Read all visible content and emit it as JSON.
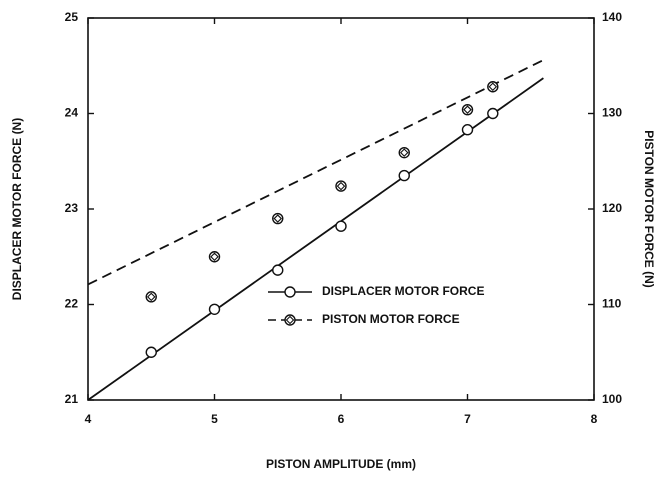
{
  "chart_data": {
    "type": "line",
    "xlabel": "PISTON AMPLITUDE (mm)",
    "ylabel": "DISPLACER MOTOR FORCE (N)",
    "y2label": "PISTON MOTOR FORCE (N)",
    "xlim": [
      4,
      8
    ],
    "xticks": [
      4,
      5,
      6,
      7,
      8
    ],
    "ylim": [
      21,
      25
    ],
    "yticks": [
      21,
      22,
      23,
      24,
      25
    ],
    "y2lim": [
      100,
      140
    ],
    "y2ticks": [
      100,
      110,
      120,
      130,
      140
    ],
    "legend": "lower right",
    "series": [
      {
        "name": "DISPLACER MOTOR FORCE",
        "color": "#111111",
        "dash": false,
        "marker": "circle",
        "x": [
          4.5,
          5,
          5.5,
          6,
          6.5,
          7,
          7.2
        ],
        "values": [
          21.5,
          21.95,
          22.36,
          22.82,
          23.35,
          23.83,
          24.0
        ],
        "fit_x": [
          4,
          7.6
        ],
        "fit_values": [
          21.0,
          24.37
        ]
      },
      {
        "name": "PISTON MOTOR FORCE",
        "color": "#111111",
        "dash": true,
        "marker": "circle-diamond",
        "axis": "y2",
        "x": [
          4.5,
          5,
          5.5,
          6,
          6.5,
          7,
          7.2
        ],
        "values": [
          110.8,
          115.0,
          119.0,
          122.4,
          125.9,
          130.4,
          132.8
        ],
        "fit_x": [
          4,
          7.6
        ],
        "fit_values": [
          112.1,
          135.6
        ]
      }
    ]
  }
}
